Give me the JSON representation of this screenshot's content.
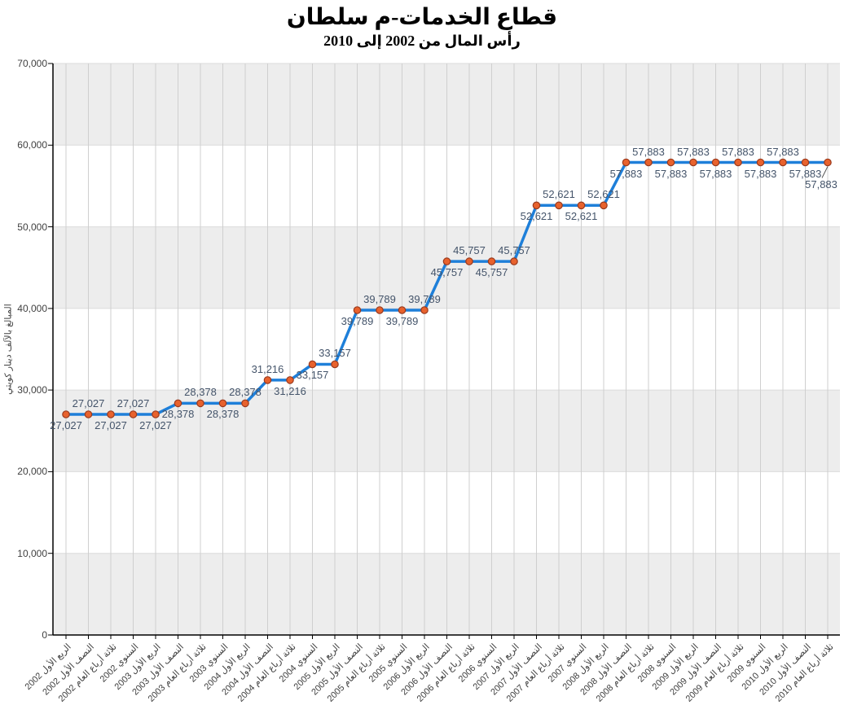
{
  "chart_data": {
    "type": "line",
    "title": "قطاع الخدمات-م سلطان",
    "subtitle": "رأس المال من 2002 إلى 2010",
    "xlabel": "",
    "ylabel": "المبالغ بالآلف دينار كويتي",
    "ylim": [
      0,
      70000
    ],
    "ytick_step": 10000,
    "ytick_labels": [
      "0",
      "10,000",
      "20,000",
      "30,000",
      "40,000",
      "50,000",
      "60,000",
      "70,000"
    ],
    "grid": "vertical category gridlines + horizontal alternating bands",
    "legend_position": "none",
    "categories": [
      "الربع الأول 2002",
      "النصف الأول 2002",
      "ثلاثة أرباع العام 2002",
      "السنوي 2002",
      "الربع الأول 2003",
      "النصف الأول 2003",
      "ثلاثة أرباع العام 2003",
      "السنوي 2003",
      "الربع الأول 2004",
      "النصف الأول 2004",
      "ثلاثة أرباع العام 2004",
      "السنوي 2004",
      "الربع الأول 2005",
      "النصف الأول 2005",
      "ثلاثة أرباع العام 2005",
      "السنوي 2005",
      "الربع الأول 2006",
      "النصف الأول 2006",
      "ثلاثة أرباع العام 2006",
      "السنوي 2006",
      "الربع الأول 2007",
      "النصف الأول 2007",
      "ثلاثة أرباع العام 2007",
      "السنوي 2007",
      "الربع الأول 2008",
      "النصف الأول 2008",
      "ثلاثة أرباع العام 2008",
      "السنوي 2008",
      "الربع الأول 2009",
      "النصف الأول 2009",
      "ثلاثة أرباع العام 2009",
      "السنوي 2009",
      "الربع الأول 2010",
      "النصف الأول 2010",
      "ثلاثة أرباع العام 2010"
    ],
    "values": [
      27027,
      27027,
      27027,
      27027,
      27027,
      28378,
      28378,
      28378,
      28378,
      31216,
      31216,
      33157,
      33157,
      39789,
      39789,
      39789,
      39789,
      45757,
      45757,
      45757,
      45757,
      52621,
      52621,
      52621,
      52621,
      57883,
      57883,
      57883,
      57883,
      57883,
      57883,
      57883,
      57883,
      57883,
      57883
    ],
    "label_positions": [
      "below",
      "above",
      "below",
      "above",
      "below",
      "below",
      "above",
      "below",
      "above",
      "above",
      "below",
      "below",
      "above",
      "below",
      "above",
      "below",
      "above",
      "below",
      "above",
      "below",
      "above",
      "below",
      "above",
      "below",
      "above",
      "below",
      "above",
      "below",
      "above",
      "below",
      "above",
      "below",
      "above",
      "below",
      "leader"
    ],
    "colors": {
      "line": "#1E7FD9",
      "marker_fill": "#E8622D",
      "marker_stroke": "#9A3A1E",
      "band": "#EDEDED",
      "vgrid": "#CFCFCF",
      "hgrid": "#DBDBDB",
      "axis": "#000000",
      "data_label": "#44546A",
      "tick_label": "#3F3F3F",
      "leader": "#555555"
    }
  }
}
